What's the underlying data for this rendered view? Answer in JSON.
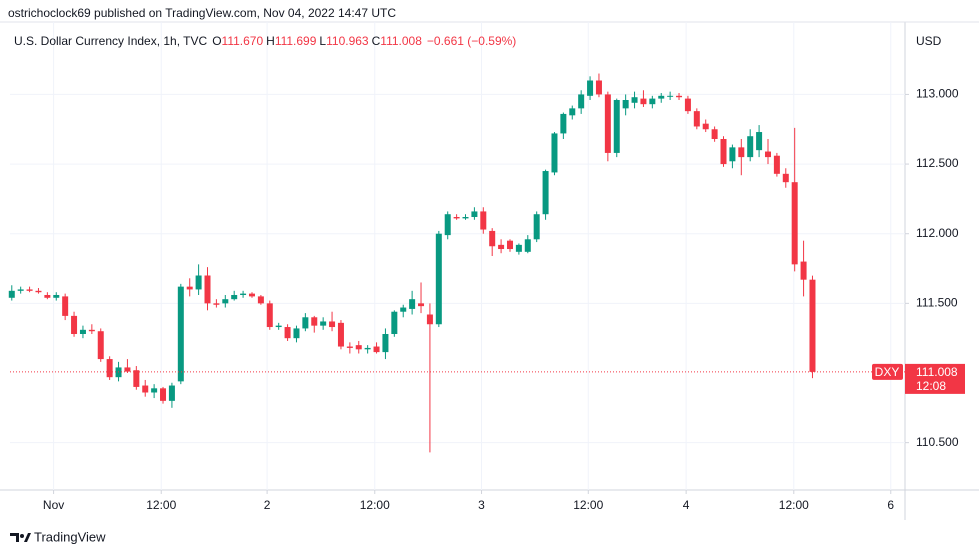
{
  "chart_data": {
    "type": "candlestick",
    "publisher": "ostrichoclock69 published on TradingView.com, Nov 04, 2022 14:47 UTC",
    "title": "U.S. Dollar Currency Index, 1h, TVC",
    "ohlc_keys": [
      "O",
      "H",
      "L",
      "C"
    ],
    "ohlc_labels": [
      "111.670",
      "111.699",
      "110.963",
      "111.008"
    ],
    "change_label": "−0.661 (−0.59%)",
    "currency": "USD",
    "symbol": "DXY",
    "last_label": "111.008",
    "last_value": 111.008,
    "countdown": "12:08",
    "brand": "TradingView",
    "up_color": "#089981",
    "down_color": "#f23645",
    "grid": true,
    "ylim": [
      110.16,
      113.52
    ],
    "yticks": [
      {
        "value": 110.5,
        "label": "110.500"
      },
      {
        "value": 111.5,
        "label": "111.500"
      },
      {
        "value": 112,
        "label": "112.000"
      },
      {
        "value": 112.5,
        "label": "112.500"
      },
      {
        "value": 113,
        "label": "113.000"
      }
    ],
    "xlim": [
      -0.2,
      100.4
    ],
    "xticks": [
      {
        "value": 4.7,
        "label": "Nov"
      },
      {
        "value": 16.8,
        "label": "12:00"
      },
      {
        "value": 28.7,
        "label": "2"
      },
      {
        "value": 40.8,
        "label": "12:00"
      },
      {
        "value": 52.8,
        "label": "3"
      },
      {
        "value": 64.8,
        "label": "12:00"
      },
      {
        "value": 75.8,
        "label": "4"
      },
      {
        "value": 87.9,
        "label": "12:00"
      },
      {
        "value": 98.8,
        "label": "6"
      }
    ],
    "open": [
      111.54,
      111.59,
      111.6,
      111.59,
      111.56,
      111.54,
      111.55,
      111.41,
      111.28,
      111.31,
      111.3,
      111.1,
      110.97,
      111.04,
      111.02,
      110.91,
      110.86,
      110.89,
      110.8,
      110.94,
      111.62,
      111.6,
      111.7,
      111.5,
      111.5,
      111.53,
      111.56,
      111.57,
      111.55,
      111.5,
      111.33,
      111.33,
      111.25,
      111.32,
      111.4,
      111.34,
      111.37,
      111.36,
      111.19,
      111.2,
      111.17,
      111.19,
      111.15,
      111.28,
      111.44,
      111.46,
      111.5,
      111.42,
      111.35,
      111.99,
      112.12,
      112.11,
      112.12,
      112.16,
      112.02,
      111.92,
      111.95,
      111.87,
      111.87,
      111.96,
      112.14,
      112.44,
      112.72,
      112.85,
      112.9,
      112.99,
      113.1,
      113,
      112.58,
      112.9,
      112.94,
      112.97,
      112.93,
      112.97,
      112.99,
      112.99,
      112.97,
      112.88,
      112.79,
      112.75,
      112.68,
      112.52,
      112.62,
      112.55,
      112.6,
      112.59,
      112.56,
      112.43,
      112.37,
      111.8,
      111.67
    ],
    "high": [
      111.63,
      111.62,
      111.62,
      111.61,
      111.58,
      111.58,
      111.57,
      111.44,
      111.34,
      111.35,
      111.32,
      111.12,
      111.08,
      111.1,
      111.05,
      110.95,
      110.92,
      110.9,
      110.93,
      111.64,
      111.68,
      111.78,
      111.76,
      111.53,
      111.56,
      111.59,
      111.59,
      111.58,
      111.56,
      111.52,
      111.36,
      111.35,
      111.34,
      111.43,
      111.41,
      111.4,
      111.44,
      111.38,
      111.22,
      111.23,
      111.2,
      111.22,
      111.32,
      111.45,
      111.49,
      111.59,
      111.65,
      111.5,
      112.02,
      112.16,
      112.14,
      112.14,
      112.19,
      112.19,
      112.04,
      111.96,
      111.96,
      111.93,
      111.99,
      112.16,
      112.46,
      112.73,
      112.87,
      112.92,
      113.03,
      113.13,
      113.15,
      113.02,
      112.97,
      113,
      113.02,
      113.03,
      112.99,
      113.01,
      113.02,
      113.01,
      112.99,
      112.9,
      112.82,
      112.77,
      112.7,
      112.64,
      112.68,
      112.75,
      112.78,
      112.68,
      112.58,
      112.47,
      112.76,
      111.95,
      111.699
    ],
    "low": [
      111.52,
      111.57,
      111.58,
      111.57,
      111.53,
      111.52,
      111.38,
      111.26,
      111.25,
      111.28,
      111.08,
      110.95,
      110.94,
      111,
      110.88,
      110.83,
      110.82,
      110.78,
      110.75,
      110.92,
      111.55,
      111.56,
      111.45,
      111.47,
      111.47,
      111.52,
      111.54,
      111.54,
      111.49,
      111.31,
      111.31,
      111.23,
      111.22,
      111.3,
      111.29,
      111.31,
      111.3,
      111.17,
      111.14,
      111.14,
      111.14,
      111.14,
      111.1,
      111.26,
      111.4,
      111.42,
      111.43,
      110.43,
      111.33,
      111.96,
      112.1,
      112.1,
      112.1,
      112,
      111.84,
      111.86,
      111.87,
      111.85,
      111.86,
      111.94,
      112.1,
      112.42,
      112.68,
      112.82,
      112.86,
      112.96,
      112.98,
      112.52,
      112.55,
      112.85,
      112.9,
      112.91,
      112.9,
      112.94,
      112.96,
      112.96,
      112.86,
      112.75,
      112.73,
      112.66,
      112.48,
      112.47,
      112.42,
      112.52,
      112.55,
      112.5,
      112.41,
      112.33,
      111.73,
      111.55,
      110.963
    ],
    "close": [
      111.59,
      111.6,
      111.59,
      111.58,
      111.54,
      111.56,
      111.41,
      111.28,
      111.31,
      111.3,
      111.1,
      110.97,
      111.04,
      111.01,
      110.9,
      110.86,
      110.89,
      110.8,
      110.91,
      111.62,
      111.6,
      111.7,
      111.5,
      111.49,
      111.53,
      111.56,
      111.57,
      111.55,
      111.5,
      111.33,
      111.34,
      111.25,
      111.32,
      111.4,
      111.34,
      111.37,
      111.33,
      111.19,
      111.18,
      111.17,
      111.18,
      111.15,
      111.28,
      111.44,
      111.47,
      111.53,
      111.48,
      111.35,
      112,
      112.14,
      112.11,
      112.12,
      112.16,
      112.03,
      111.91,
      111.89,
      111.89,
      111.92,
      111.96,
      112.14,
      112.45,
      112.72,
      112.86,
      112.9,
      113,
      113.1,
      113,
      112.58,
      112.96,
      112.96,
      112.98,
      112.93,
      112.97,
      112.99,
      112.99,
      112.98,
      112.88,
      112.77,
      112.75,
      112.68,
      112.5,
      112.62,
      112.55,
      112.7,
      112.73,
      112.55,
      112.43,
      112.37,
      111.78,
      111.67,
      111.008
    ]
  }
}
